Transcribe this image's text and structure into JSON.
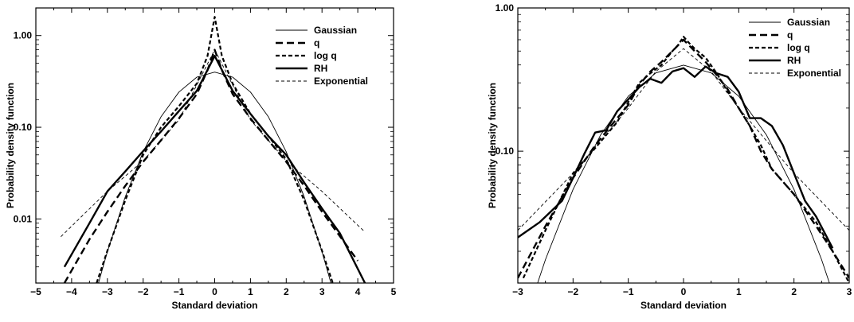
{
  "chart_data": [
    {
      "type": "line",
      "xlabel": "Standard deviation",
      "ylabel": "Probability density function",
      "xlim": [
        -5,
        5
      ],
      "ylim": [
        0.002,
        2.0
      ],
      "yscale": "log",
      "xticks": [
        "−5",
        "−4",
        "−3",
        "−2",
        "−1",
        "0",
        "1",
        "2",
        "3",
        "4",
        "5"
      ],
      "xtick_values": [
        -5,
        -4,
        -3,
        -2,
        -1,
        0,
        1,
        2,
        3,
        4,
        5
      ],
      "yticks": [
        "0.01",
        "0.10",
        "1.00"
      ],
      "ytick_values": [
        0.01,
        0.1,
        1.0
      ],
      "legend": "top-right",
      "series": [
        {
          "name": "Gaussian",
          "style": "thin-solid",
          "x": [
            -3.3,
            -3.0,
            -2.5,
            -2.0,
            -1.5,
            -1.0,
            -0.5,
            0,
            0.5,
            1.0,
            1.5,
            2.0,
            2.5,
            3.0,
            3.3
          ],
          "y": [
            0.0017,
            0.0044,
            0.0175,
            0.054,
            0.13,
            0.242,
            0.352,
            0.399,
            0.352,
            0.242,
            0.13,
            0.054,
            0.0175,
            0.0044,
            0.0017
          ]
        },
        {
          "name": "q",
          "style": "long-dash",
          "x": [
            -4.2,
            -3.5,
            -3.0,
            -2.5,
            -2.0,
            -1.5,
            -1.0,
            -0.5,
            -0.2,
            0,
            0.2,
            0.5,
            1.0,
            1.5,
            2.0,
            2.5,
            3.0,
            3.5,
            4.0
          ],
          "y": [
            0.002,
            0.006,
            0.012,
            0.023,
            0.042,
            0.072,
            0.125,
            0.23,
            0.42,
            0.7,
            0.42,
            0.23,
            0.125,
            0.072,
            0.042,
            0.023,
            0.012,
            0.0065,
            0.0035
          ]
        },
        {
          "name": "log q",
          "style": "short-dash",
          "x": [
            -3.3,
            -3.0,
            -2.5,
            -2.0,
            -1.5,
            -1.0,
            -0.5,
            -0.2,
            0,
            0.2,
            0.5,
            1.0,
            1.5,
            2.0,
            2.5,
            3.0,
            3.3
          ],
          "y": [
            0.002,
            0.0045,
            0.016,
            0.05,
            0.1,
            0.17,
            0.3,
            0.6,
            1.6,
            0.6,
            0.3,
            0.14,
            0.08,
            0.045,
            0.016,
            0.0045,
            0.002
          ]
        },
        {
          "name": "RH",
          "style": "thick-solid",
          "x": [
            -4.2,
            -3.5,
            -3.0,
            -2.5,
            -2.0,
            -1.5,
            -1.0,
            -0.5,
            0,
            0.5,
            1.0,
            1.5,
            2.0,
            2.5,
            3.0,
            3.5,
            4.2
          ],
          "y": [
            0.003,
            0.009,
            0.02,
            0.033,
            0.055,
            0.09,
            0.15,
            0.25,
            0.6,
            0.25,
            0.14,
            0.08,
            0.05,
            0.025,
            0.013,
            0.007,
            0.002
          ]
        },
        {
          "name": "Exponential",
          "style": "thin-dash",
          "x": [
            -4.3,
            -3.0,
            -2.0,
            -1.0,
            0,
            1.0,
            2.0,
            3.0,
            4.2
          ],
          "y": [
            0.0064,
            0.02,
            0.043,
            0.12,
            0.7,
            0.12,
            0.043,
            0.02,
            0.0072
          ]
        }
      ]
    },
    {
      "type": "line",
      "xlabel": "Standard deviation",
      "ylabel": "Probability density function",
      "xlim": [
        -3,
        3
      ],
      "ylim": [
        0.012,
        1.0
      ],
      "yscale": "log",
      "xticks": [
        "−3",
        "−2",
        "−1",
        "0",
        "1",
        "2",
        "3"
      ],
      "xtick_values": [
        -3,
        -2,
        -1,
        0,
        1,
        2,
        3
      ],
      "yticks": [
        "0.10",
        "1.00"
      ],
      "ytick_values": [
        0.1,
        1.0
      ],
      "legend": "top-right",
      "series": [
        {
          "name": "Gaussian",
          "style": "thin-solid",
          "x": [
            -2.8,
            -2.5,
            -2.0,
            -1.5,
            -1.0,
            -0.5,
            0,
            0.5,
            1.0,
            1.5,
            2.0,
            2.5,
            2.8
          ],
          "y": [
            0.0079,
            0.0175,
            0.054,
            0.13,
            0.242,
            0.352,
            0.399,
            0.352,
            0.242,
            0.13,
            0.054,
            0.0175,
            0.0079
          ]
        },
        {
          "name": "q",
          "style": "long-dash",
          "x": [
            -3.0,
            -2.5,
            -2.0,
            -1.6,
            -1.2,
            -1.0,
            -0.8,
            -0.6,
            -0.4,
            -0.2,
            0,
            0.2,
            0.4,
            0.6,
            0.8,
            1.0,
            1.2,
            1.4,
            1.6,
            2.0,
            2.4,
            2.7,
            3.0
          ],
          "y": [
            0.013,
            0.03,
            0.065,
            0.11,
            0.17,
            0.21,
            0.29,
            0.36,
            0.42,
            0.5,
            0.6,
            0.5,
            0.42,
            0.34,
            0.27,
            0.2,
            0.15,
            0.1,
            0.075,
            0.05,
            0.03,
            0.02,
            0.013
          ]
        },
        {
          "name": "log q",
          "style": "short-dash",
          "x": [
            -2.9,
            -2.5,
            -2.0,
            -1.6,
            -1.2,
            -1.0,
            -0.8,
            -0.6,
            -0.4,
            -0.2,
            -0.1,
            0,
            0.1,
            0.2,
            0.4,
            0.6,
            0.8,
            1.0,
            1.2,
            1.4,
            1.6,
            2.0,
            2.4,
            2.7,
            3.0
          ],
          "y": [
            0.013,
            0.028,
            0.07,
            0.105,
            0.16,
            0.22,
            0.3,
            0.35,
            0.4,
            0.5,
            0.55,
            0.63,
            0.57,
            0.52,
            0.45,
            0.35,
            0.26,
            0.2,
            0.15,
            0.11,
            0.075,
            0.05,
            0.032,
            0.02,
            0.012
          ]
        },
        {
          "name": "RH",
          "style": "thick-solid",
          "x": [
            -3.0,
            -2.6,
            -2.2,
            -2.0,
            -1.8,
            -1.6,
            -1.4,
            -1.2,
            -1.0,
            -0.8,
            -0.6,
            -0.4,
            -0.2,
            0,
            0.2,
            0.4,
            0.6,
            0.8,
            1.0,
            1.2,
            1.4,
            1.6,
            1.8,
            2.0,
            2.2,
            2.4,
            2.7
          ],
          "y": [
            0.025,
            0.032,
            0.045,
            0.065,
            0.095,
            0.135,
            0.14,
            0.19,
            0.23,
            0.28,
            0.32,
            0.3,
            0.36,
            0.38,
            0.33,
            0.39,
            0.35,
            0.33,
            0.26,
            0.17,
            0.17,
            0.15,
            0.11,
            0.07,
            0.045,
            0.035,
            0.021
          ]
        },
        {
          "name": "Exponential",
          "style": "thin-dash",
          "x": [
            -3.0,
            -2.0,
            -1.0,
            -0.5,
            0,
            0.5,
            1.0,
            2.0,
            3.0
          ],
          "y": [
            0.028,
            0.07,
            0.2,
            0.36,
            0.52,
            0.36,
            0.2,
            0.07,
            0.028
          ]
        }
      ]
    }
  ]
}
